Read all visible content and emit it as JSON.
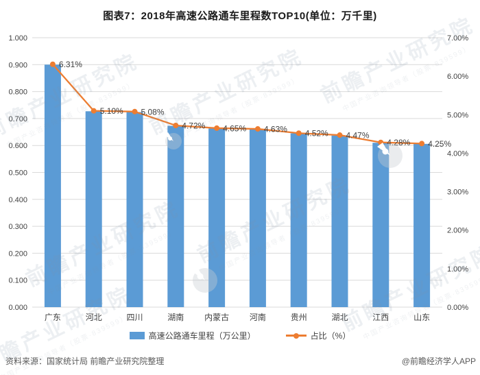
{
  "title": "图表7：2018年高速公路通车里程数TOP10(单位：万千里)",
  "watermark": {
    "main": "前瞻产业研究院",
    "sub": "中国产业咨询领导者（股票·839599）"
  },
  "legend": {
    "bar_label": "高速公路通车里程（万公里）",
    "line_label": "占比（%）"
  },
  "footer": {
    "source": "资料来源：国家统计局 前瞻产业研究院整理",
    "credit": "@前瞻经济学人APP"
  },
  "colors": {
    "bar": "#5B9BD5",
    "line": "#ED7D31",
    "grid": "#D9D9D9",
    "axis_text": "#404040",
    "category_text": "#404040",
    "data_label_text": "#404040"
  },
  "chart_data": {
    "type": "bar",
    "subtype": "bar-line-combo",
    "title": "图表7：2018年高速公路通车里程数TOP10(单位：万千里)",
    "categories": [
      "广东",
      "河北",
      "四川",
      "湖南",
      "内蒙古",
      "河南",
      "贵州",
      "湖北",
      "江西",
      "山东"
    ],
    "series": [
      {
        "name": "高速公路通车里程（万公里）",
        "type": "bar",
        "axis": "left",
        "values": [
          0.9,
          0.727,
          0.724,
          0.673,
          0.663,
          0.66,
          0.645,
          0.637,
          0.61,
          0.606
        ]
      },
      {
        "name": "占比（%）",
        "type": "line",
        "axis": "right",
        "values": [
          6.31,
          5.1,
          5.08,
          4.72,
          4.65,
          4.63,
          4.52,
          4.47,
          4.28,
          4.25
        ],
        "labels": [
          "6.31%",
          "5.10%",
          "5.08%",
          "4.72%",
          "4.65%",
          "4.63%",
          "4.52%",
          "4.47%",
          "4.28%",
          "4.25%"
        ]
      }
    ],
    "left_axis": {
      "min": 0,
      "max": 1,
      "step": 0.1,
      "decimals": 3,
      "suffix": ""
    },
    "right_axis": {
      "min": 0,
      "max": 7,
      "step": 1,
      "decimals": 2,
      "suffix": "%"
    },
    "grid": true,
    "legend_position": "bottom"
  }
}
